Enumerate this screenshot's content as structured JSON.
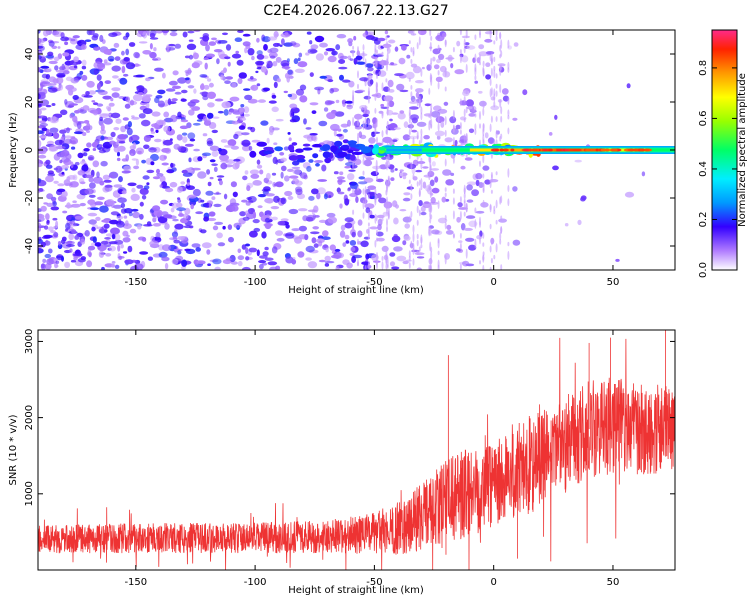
{
  "title": "C2E4.2026.067.22.13.G27",
  "chart_data": [
    {
      "type": "heatmap",
      "name": "spectrogram",
      "xlabel": "Height of straight line (km)",
      "ylabel": "Frequency (Hz)",
      "xlim": [
        -191,
        76
      ],
      "ylim": [
        -50,
        50
      ],
      "xticks": [
        -150,
        -100,
        -50,
        0,
        50
      ],
      "yticks": [
        -40,
        -20,
        0,
        20,
        40
      ],
      "xtick_labels": [
        "-150",
        "-100",
        "-50",
        "0",
        "50"
      ],
      "ytick_labels": [
        "-40",
        "-20",
        "0",
        "20",
        "40"
      ],
      "colorbar": {
        "label": "Normalized spectral amplitude",
        "range": [
          0,
          0.95
        ],
        "ticks": [
          0,
          0.2,
          0.4,
          0.6,
          0.8
        ],
        "tick_labels": [
          "0.0",
          "0.2",
          "0.4",
          "0.6",
          "0.8"
        ]
      },
      "carrier_line": {
        "frequency_hz": 0,
        "x_start": -45,
        "x_end": 76,
        "segments": [
          {
            "x0": -45,
            "x1": -30,
            "amplitude": 0.3
          },
          {
            "x0": -30,
            "x1": -10,
            "amplitude": 0.5
          },
          {
            "x0": -10,
            "x1": 5,
            "amplitude": 0.75
          },
          {
            "x0": 5,
            "x1": 20,
            "amplitude": 0.8
          },
          {
            "x0": 20,
            "x1": 45,
            "amplitude": 0.9
          },
          {
            "x0": 45,
            "x1": 65,
            "amplitude": 0.7
          },
          {
            "x0": 65,
            "x1": 76,
            "amplitude": 0.5
          }
        ]
      },
      "noise": {
        "x_start": -191,
        "x_end": -40,
        "amplitude": 0.1
      }
    },
    {
      "type": "line",
      "name": "snr",
      "xlabel": "Height of straight line (km)",
      "ylabel": "SNR (10 * v/v)",
      "xlim": [
        -191,
        76
      ],
      "ylim": [
        0,
        3150
      ],
      "xticks": [
        -150,
        -100,
        -50,
        0,
        50
      ],
      "yticks": [
        1000,
        2000,
        3000
      ],
      "xtick_labels": [
        "-150",
        "-100",
        "-50",
        "0",
        "50"
      ],
      "ytick_labels": [
        "1000",
        "2000",
        "3000"
      ],
      "color": "#ee3333",
      "trend": {
        "x": [
          -191,
          -150,
          -100,
          -70,
          -50,
          -40,
          -30,
          -20,
          -10,
          0,
          10,
          20,
          30,
          40,
          50,
          60,
          76
        ],
        "mean": [
          400,
          420,
          420,
          440,
          480,
          550,
          700,
          900,
          1050,
          1200,
          1300,
          1450,
          1650,
          1850,
          1900,
          1850,
          1850
        ],
        "spread": [
          180,
          200,
          200,
          220,
          280,
          350,
          450,
          550,
          600,
          650,
          650,
          650,
          650,
          650,
          650,
          600,
          600
        ]
      }
    }
  ]
}
